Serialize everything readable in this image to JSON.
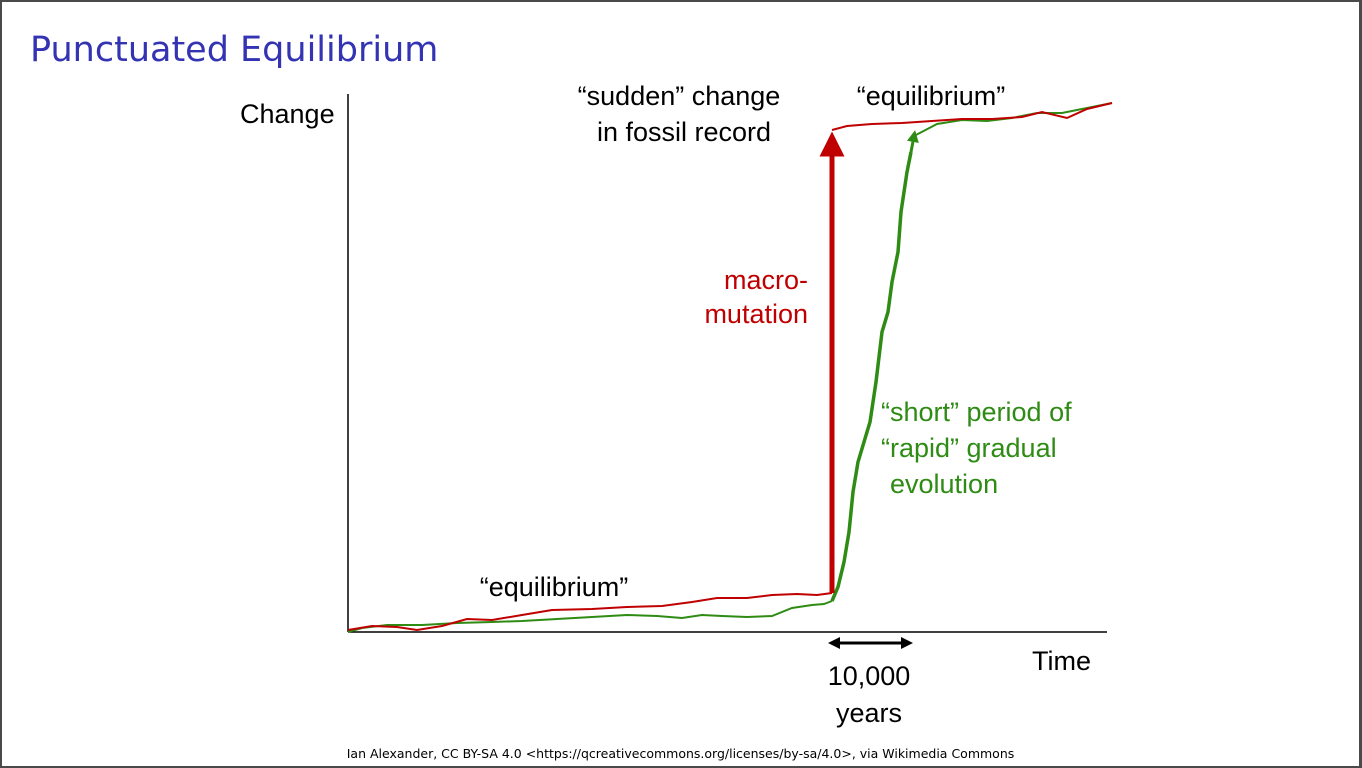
{
  "title": "Punctuated Equilibrium",
  "axis": {
    "y_label": "Change",
    "x_label": "Time"
  },
  "labels": {
    "sudden_change": [
      "“sudden” change",
      "in fossil record"
    ],
    "equilibrium_top": "“equilibrium”",
    "equilibrium_bottom": "“equilibrium”",
    "macro_mutation": [
      "macro-",
      "mutation"
    ],
    "short_period": [
      "“short” period of",
      "“rapid” gradual",
      "evolution"
    ],
    "duration": [
      "10,000",
      "years"
    ]
  },
  "colors": {
    "title": "#3333b3",
    "punctuated": "#c00000",
    "gradual": "#2e8b14",
    "axis": "#000000"
  },
  "credit": "Ian Alexander, CC BY-SA 4.0 <https://qcreativecommons.org/licenses/by-sa/4.0>, via Wikimedia Commons"
}
